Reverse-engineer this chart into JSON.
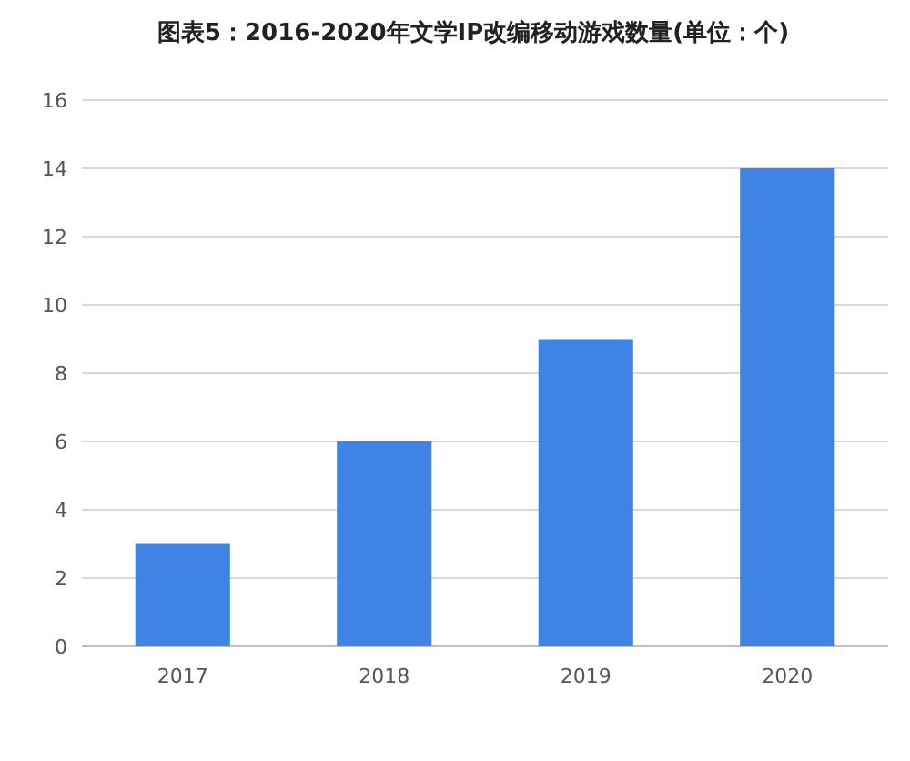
{
  "chart_data": {
    "type": "bar",
    "title": "图表5：2016-2020年文学IP改编移动游戏数量(单位：个)",
    "categories": [
      "2017",
      "2018",
      "2019",
      "2020"
    ],
    "values": [
      3,
      6,
      9,
      14
    ],
    "color": "#3f84e5",
    "ylim": [
      0,
      16
    ],
    "yticks": [
      0,
      2,
      4,
      6,
      8,
      10,
      12,
      14,
      16
    ],
    "grid": "y"
  }
}
